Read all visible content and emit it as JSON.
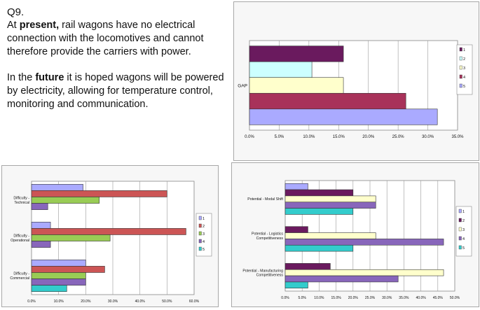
{
  "question": {
    "number": "Q9.",
    "p1": {
      "pre": "At ",
      "bold": "present,",
      "post": " rail wagons have no electrical connection with the locomotives and cannot therefore provide the carriers with power."
    },
    "p2": {
      "pre": "In the ",
      "bold": "future",
      "post": " it is hoped wagons will be powered by electricity, allowing for temperature control, monitoring and communication."
    }
  },
  "colors": [
    "#6a1a5e",
    "#ccffff",
    "#ffffcc",
    "#a8325a",
    "#aaaaff",
    "#33cccc",
    "#cc5555",
    "#99cc55",
    "#8866bb",
    "#4fbcd4"
  ],
  "chart_data": [
    {
      "type": "bar",
      "orientation": "horizontal",
      "categories": [
        "GAP"
      ],
      "series": [
        {
          "name": "1",
          "values": [
            15.8
          ]
        },
        {
          "name": "2",
          "values": [
            10.5
          ]
        },
        {
          "name": "3",
          "values": [
            15.8
          ]
        },
        {
          "name": "4",
          "values": [
            26.3
          ]
        },
        {
          "name": "5",
          "values": [
            31.6
          ]
        }
      ],
      "xlim": [
        0,
        35
      ],
      "xticks": [
        "0.0%",
        "5.0%",
        "10.0%",
        "15.0%",
        "20.0%",
        "25.0%",
        "30.0%",
        "35.0%"
      ],
      "grid": true,
      "legend": "right"
    },
    {
      "type": "bar",
      "orientation": "horizontal",
      "categories": [
        "Difficulty -\nTechnical",
        "Difficulty -\nOperational",
        "Difficulty -\nCommercial"
      ],
      "series": [
        {
          "name": "1",
          "values": [
            19,
            7,
            20
          ]
        },
        {
          "name": "2",
          "values": [
            50,
            57,
            27
          ]
        },
        {
          "name": "3",
          "values": [
            25,
            29,
            20
          ]
        },
        {
          "name": "4",
          "values": [
            6,
            7,
            20
          ]
        },
        {
          "name": "5",
          "values": [
            0,
            0,
            13
          ]
        }
      ],
      "xlim": [
        0,
        60
      ],
      "xticks": [
        "0.0%",
        "10.0%",
        "20.0%",
        "30.0%",
        "40.0%",
        "50.0%",
        "60.0%"
      ],
      "grid": true,
      "legend": "right"
    },
    {
      "type": "bar",
      "orientation": "horizontal",
      "categories": [
        "Potential - Modal Shift",
        "Potential - Logistics\nCompetitiveness",
        "Potential - Manufacturing\nCompetitiveness"
      ],
      "series": [
        {
          "name": "1",
          "values": [
            6.7,
            0,
            0
          ]
        },
        {
          "name": "2",
          "values": [
            20,
            6.7,
            13.3
          ]
        },
        {
          "name": "3",
          "values": [
            26.7,
            26.7,
            46.7
          ]
        },
        {
          "name": "4",
          "values": [
            26.7,
            46.7,
            33.3
          ]
        },
        {
          "name": "5",
          "values": [
            20,
            20,
            6.7
          ]
        }
      ],
      "xlim": [
        0,
        50
      ],
      "xticks": [
        "0.0%",
        "5.0%",
        "10.0%",
        "15.0%",
        "20.0%",
        "25.0%",
        "30.0%",
        "35.0%",
        "40.0%",
        "45.0%",
        "50.0%"
      ],
      "grid": true,
      "legend": "right"
    }
  ]
}
